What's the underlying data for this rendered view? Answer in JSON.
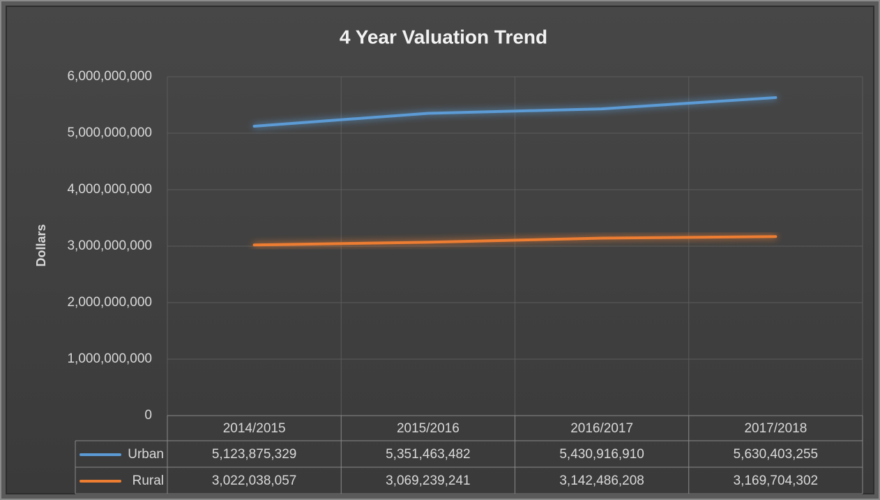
{
  "chart_data": {
    "type": "line",
    "title": "4 Year Valuation Trend",
    "y_label": "Dollars",
    "categories": [
      "2014/2015",
      "2015/2016",
      "2016/2017",
      "2017/2018"
    ],
    "series": [
      {
        "name": "Urban",
        "color": "#5b9bd5",
        "values": [
          5123875329,
          5351463482,
          5430916910,
          5630403255
        ],
        "value_labels": [
          "5,123,875,329",
          "5,351,463,482",
          "5,430,916,910",
          "5,630,403,255"
        ]
      },
      {
        "name": "Rural",
        "color": "#ed7d31",
        "values": [
          3022038057,
          3069239241,
          3142486208,
          3169704302
        ],
        "value_labels": [
          "3,022,038,057",
          "3,069,239,241",
          "3,142,486,208",
          "3,169,704,302"
        ]
      }
    ],
    "ylim": [
      0,
      6000000000
    ],
    "yticks": [
      0,
      {
        "value": 1000000000,
        "label": "1,000,000,000"
      },
      {
        "value": 2000000000,
        "label": "2,000,000,000"
      },
      {
        "value": 3000000000,
        "label": "3,000,000,000"
      },
      {
        "value": 4000000000,
        "label": "4,000,000,000"
      },
      {
        "value": 5000000000,
        "label": "5,000,000,000"
      },
      {
        "value": 6000000000,
        "label": "6,000,000,000"
      }
    ],
    "grid": true
  }
}
